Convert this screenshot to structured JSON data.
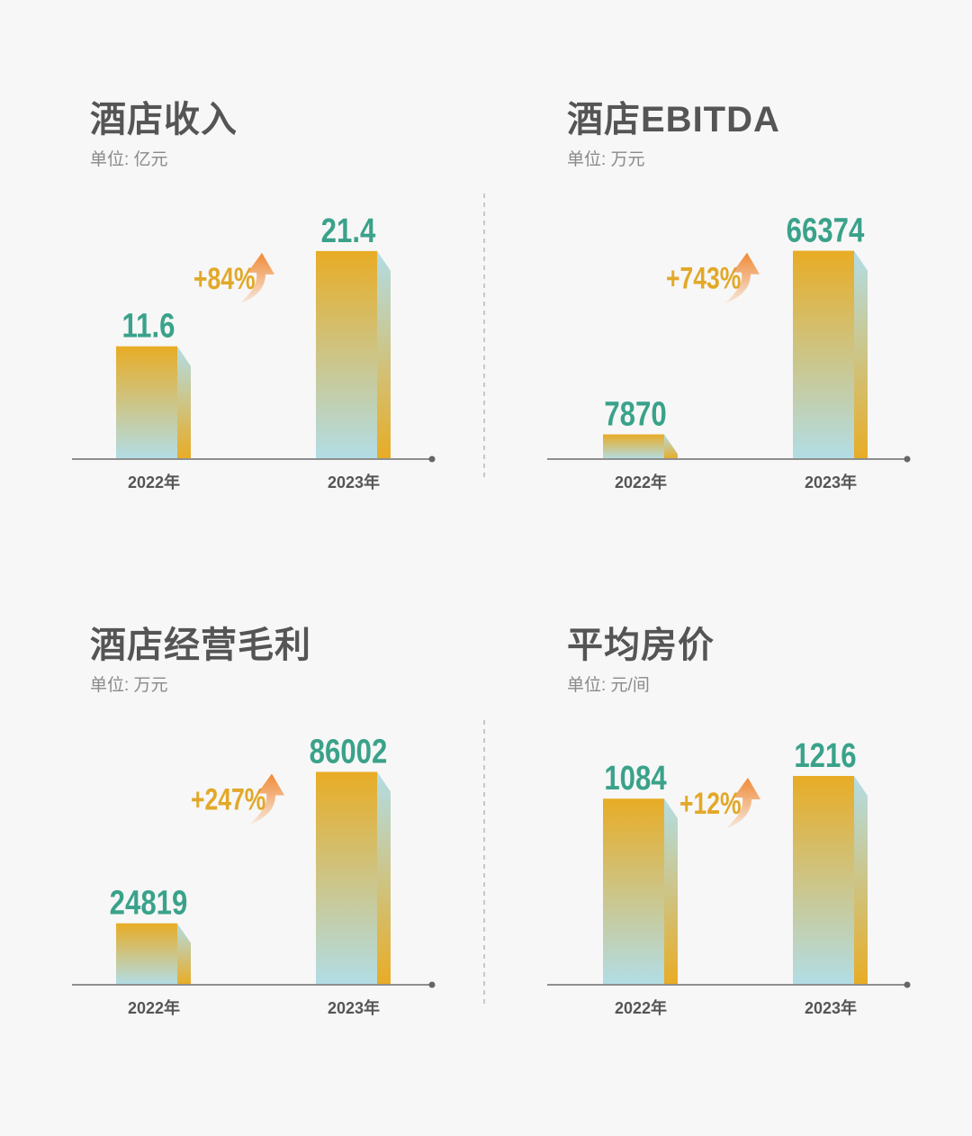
{
  "colors": {
    "background": "#f7f7f7",
    "bar_top": "#e8ac25",
    "bar_bottom": "#b2dde6",
    "value_label": "#3aa28a",
    "growth_label": "#e2a828",
    "arrow": "#f08a37",
    "axis": "#8e8e8e",
    "title": "#555555",
    "unit": "#8a8a8a"
  },
  "chart_data": [
    {
      "type": "bar",
      "title": "酒店收入",
      "unit": "单位: 亿元",
      "categories": [
        "2022年",
        "2023年"
      ],
      "values": [
        11.6,
        21.4
      ],
      "value_labels": [
        "11.6",
        "21.4"
      ],
      "growth": "+84%"
    },
    {
      "type": "bar",
      "title": "酒店EBITDA",
      "unit": "单位: 万元",
      "categories": [
        "2022年",
        "2023年"
      ],
      "values": [
        7870,
        66374
      ],
      "value_labels": [
        "7870",
        "66374"
      ],
      "growth": "+743%"
    },
    {
      "type": "bar",
      "title": "酒店经营毛利",
      "unit": "单位: 万元",
      "categories": [
        "2022年",
        "2023年"
      ],
      "values": [
        24819,
        86002
      ],
      "value_labels": [
        "24819",
        "86002"
      ],
      "growth": "+247%"
    },
    {
      "type": "bar",
      "title": "平均房价",
      "unit": "单位: 元/间",
      "categories": [
        "2022年",
        "2023年"
      ],
      "values": [
        1084,
        1216
      ],
      "value_labels": [
        "1084",
        "1216"
      ],
      "growth": "+12%"
    }
  ]
}
